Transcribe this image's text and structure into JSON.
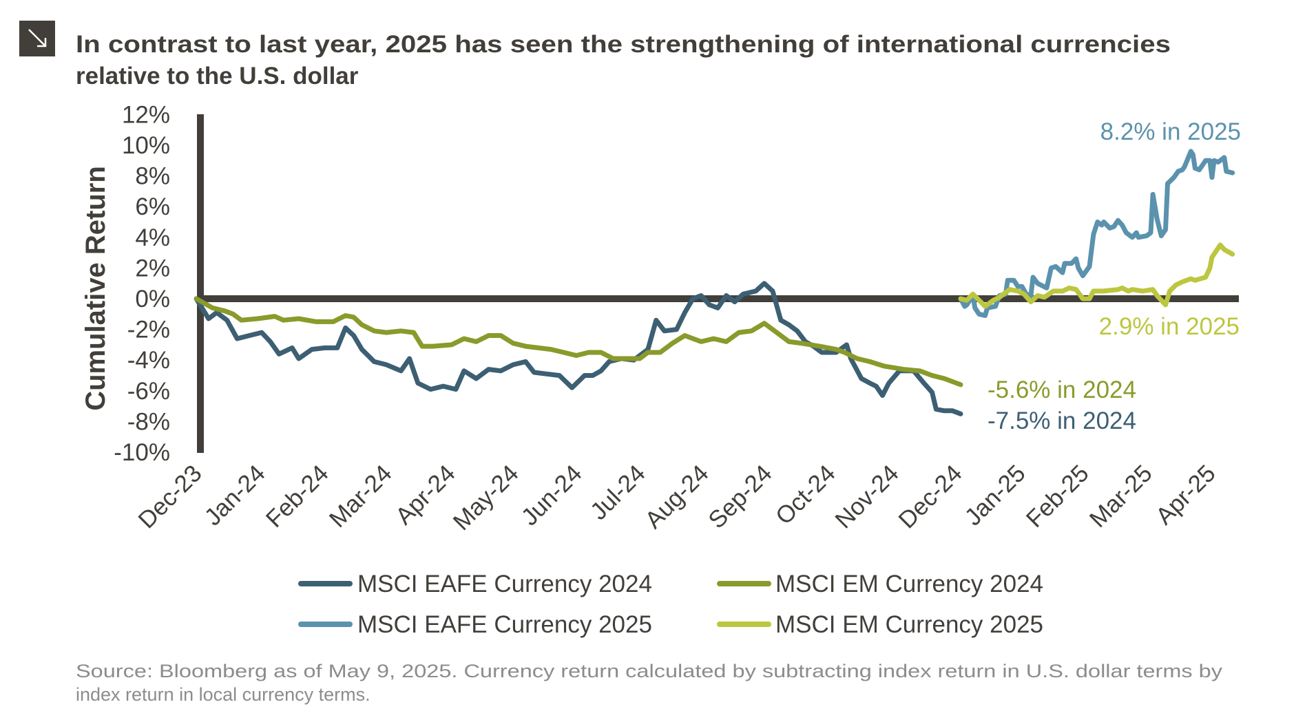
{
  "header": {
    "icon": "arrow-down-right-icon",
    "title_line1": "In contrast to last year, 2025 has seen the strengthening of international currencies",
    "title_line2": "relative to the U.S. dollar"
  },
  "source": {
    "line1": "Source: Bloomberg as of May 9, 2025. Currency return calculated by subtracting index return in U.S. dollar terms by",
    "line2": "index return in local currency terms."
  },
  "chart_data": {
    "type": "line",
    "ylabel": "Cumulative Return",
    "xlabel": "",
    "ylim": [
      -10,
      12
    ],
    "yticks": [
      "12%",
      "10%",
      "8%",
      "6%",
      "4%",
      "2%",
      "0%",
      "-2%",
      "-4%",
      "-6%",
      "-8%",
      "-10%"
    ],
    "xticks": [
      "Dec-23",
      "Jan-24",
      "Feb-24",
      "Mar-24",
      "Apr-24",
      "May-24",
      "Jun-24",
      "Jul-24",
      "Aug-24",
      "Sep-24",
      "Oct-24",
      "Nov-24",
      "Dec-24",
      "Jan-25",
      "Feb-25",
      "Mar-25",
      "Apr-25"
    ],
    "grid": false,
    "legend_position": "bottom",
    "annotations": [
      {
        "text": "8.2% in 2025",
        "series": "MSCI EAFE Currency 2025",
        "color": "#5b92ad"
      },
      {
        "text": "2.9% in 2025",
        "series": "MSCI EM Currency 2025",
        "color": "#bcc63f"
      },
      {
        "text": "-5.6% in 2024",
        "series": "MSCI EM Currency 2024",
        "color": "#8a9a2b"
      },
      {
        "text": "-7.5% in 2024",
        "series": "MSCI EAFE Currency 2024",
        "color": "#3d5f73"
      }
    ],
    "series": [
      {
        "name": "MSCI EAFE Currency 2024",
        "color": "#3d5f73",
        "x": [
          "2023-12-29",
          "2024-01-04",
          "2024-01-08",
          "2024-01-13",
          "2024-01-18",
          "2024-01-24",
          "2024-01-30",
          "2024-02-03",
          "2024-02-07",
          "2024-02-13",
          "2024-02-16",
          "2024-02-22",
          "2024-02-28",
          "2024-03-05",
          "2024-03-09",
          "2024-03-13",
          "2024-03-17",
          "2024-03-23",
          "2024-03-29",
          "2024-04-05",
          "2024-04-09",
          "2024-04-13",
          "2024-04-19",
          "2024-04-25",
          "2024-05-01",
          "2024-05-05",
          "2024-05-11",
          "2024-05-17",
          "2024-05-23",
          "2024-05-29",
          "2024-06-04",
          "2024-06-08",
          "2024-06-14",
          "2024-06-20",
          "2024-06-26",
          "2024-07-02",
          "2024-07-06",
          "2024-07-10",
          "2024-07-14",
          "2024-07-20",
          "2024-07-26",
          "2024-08-02",
          "2024-08-06",
          "2024-08-10",
          "2024-08-16",
          "2024-08-20",
          "2024-08-24",
          "2024-08-28",
          "2024-09-01",
          "2024-09-05",
          "2024-09-09",
          "2024-09-13",
          "2024-09-17",
          "2024-09-23",
          "2024-09-27",
          "2024-10-01",
          "2024-10-05",
          "2024-10-09",
          "2024-10-13",
          "2024-10-17",
          "2024-10-21",
          "2024-10-25",
          "2024-11-01",
          "2024-11-06",
          "2024-11-08",
          "2024-11-13",
          "2024-11-17",
          "2024-11-20",
          "2024-11-23",
          "2024-11-26",
          "2024-12-01",
          "2024-12-04",
          "2024-12-08",
          "2024-12-13",
          "2024-12-17",
          "2024-12-19",
          "2024-12-23",
          "2024-12-27",
          "2024-12-31"
        ],
        "y": [
          0,
          -1.3,
          -0.9,
          -1.4,
          -2.6,
          -2.4,
          -2.2,
          -2.8,
          -3.6,
          -3.2,
          -3.9,
          -3.3,
          -3.2,
          -3.2,
          -1.9,
          -2.4,
          -3.3,
          -4.1,
          -4.3,
          -4.7,
          -3.9,
          -5.5,
          -5.9,
          -5.7,
          -5.9,
          -4.7,
          -5.2,
          -4.6,
          -4.7,
          -4.3,
          -4.1,
          -4.8,
          -4.9,
          -5.0,
          -5.8,
          -5.0,
          -5.0,
          -4.7,
          -4.1,
          -3.9,
          -4.0,
          -3.3,
          -1.4,
          -2.1,
          -2.0,
          -0.9,
          0.0,
          0.2,
          -0.4,
          -0.6,
          0.2,
          -0.2,
          0.3,
          0.5,
          1.0,
          0.5,
          -1.4,
          -1.7,
          -2.1,
          -2.8,
          -3.1,
          -3.5,
          -3.5,
          -3.0,
          -3.9,
          -5.2,
          -5.5,
          -5.7,
          -6.3,
          -5.5,
          -4.7,
          -4.7,
          -4.7,
          -5.5,
          -6.1,
          -7.2,
          -7.3,
          -7.3,
          -7.5
        ]
      },
      {
        "name": "MSCI EM Currency 2024",
        "color": "#8a9a2b",
        "x": [
          "2023-12-29",
          "2024-01-06",
          "2024-01-12",
          "2024-01-16",
          "2024-01-20",
          "2024-01-28",
          "2024-02-05",
          "2024-02-09",
          "2024-02-16",
          "2024-02-24",
          "2024-03-03",
          "2024-03-09",
          "2024-03-13",
          "2024-03-17",
          "2024-03-23",
          "2024-03-29",
          "2024-04-05",
          "2024-04-11",
          "2024-04-15",
          "2024-04-20",
          "2024-04-29",
          "2024-05-05",
          "2024-05-11",
          "2024-05-17",
          "2024-05-23",
          "2024-05-29",
          "2024-06-04",
          "2024-06-10",
          "2024-06-16",
          "2024-06-22",
          "2024-06-28",
          "2024-07-04",
          "2024-07-10",
          "2024-07-16",
          "2024-07-22",
          "2024-07-29",
          "2024-08-02",
          "2024-08-08",
          "2024-08-14",
          "2024-08-20",
          "2024-08-28",
          "2024-09-03",
          "2024-09-09",
          "2024-09-15",
          "2024-09-21",
          "2024-09-27",
          "2024-10-03",
          "2024-10-09",
          "2024-10-15",
          "2024-10-24",
          "2024-11-01",
          "2024-11-05",
          "2024-11-11",
          "2024-11-17",
          "2024-11-24",
          "2024-12-03",
          "2024-12-11",
          "2024-12-17",
          "2024-12-23",
          "2024-12-31"
        ],
        "y": [
          0,
          -0.6,
          -0.8,
          -1.0,
          -1.4,
          -1.3,
          -1.15,
          -1.4,
          -1.3,
          -1.5,
          -1.5,
          -1.1,
          -1.2,
          -1.7,
          -2.1,
          -2.2,
          -2.1,
          -2.2,
          -3.1,
          -3.1,
          -3.0,
          -2.6,
          -2.8,
          -2.4,
          -2.4,
          -2.9,
          -3.1,
          -3.2,
          -3.3,
          -3.5,
          -3.7,
          -3.5,
          -3.5,
          -3.9,
          -3.9,
          -3.9,
          -3.5,
          -3.5,
          -2.9,
          -2.4,
          -2.8,
          -2.6,
          -2.8,
          -2.2,
          -2.1,
          -1.6,
          -2.2,
          -2.8,
          -2.9,
          -3.1,
          -3.3,
          -3.5,
          -3.9,
          -4.1,
          -4.4,
          -4.6,
          -4.7,
          -5.0,
          -5.2,
          -5.6
        ]
      },
      {
        "name": "MSCI EAFE Currency 2025",
        "color": "#5b92ad",
        "x": [
          "2024-12-31",
          "2025-01-02",
          "2025-01-03",
          "2025-01-06",
          "2025-01-07",
          "2025-01-09",
          "2025-01-12",
          "2025-01-13",
          "2025-01-17",
          "2025-01-19",
          "2025-01-22",
          "2025-01-23",
          "2025-01-26",
          "2025-01-28",
          "2025-01-30",
          "2025-02-01",
          "2025-02-03",
          "2025-02-04",
          "2025-02-06",
          "2025-02-10",
          "2025-02-12",
          "2025-02-14",
          "2025-02-17",
          "2025-02-18",
          "2025-02-21",
          "2025-02-23",
          "2025-02-24",
          "2025-02-26",
          "2025-03-01",
          "2025-03-03",
          "2025-03-05",
          "2025-03-07",
          "2025-03-08",
          "2025-03-11",
          "2025-03-13",
          "2025-03-15",
          "2025-03-17",
          "2025-03-19",
          "2025-03-22",
          "2025-03-24",
          "2025-03-25",
          "2025-03-29",
          "2025-03-31",
          "2025-04-01",
          "2025-04-03",
          "2025-04-05",
          "2025-04-07",
          "2025-04-08",
          "2025-04-11",
          "2025-04-13",
          "2025-04-15",
          "2025-04-16",
          "2025-04-19",
          "2025-04-20",
          "2025-04-21",
          "2025-04-23",
          "2025-04-26",
          "2025-04-28",
          "2025-04-29",
          "2025-04-30",
          "2025-05-02",
          "2025-05-05",
          "2025-05-06",
          "2025-05-09"
        ],
        "y": [
          0,
          -0.5,
          -0.4,
          0.2,
          -0.6,
          -1.0,
          -1.1,
          -0.6,
          -0.5,
          0.2,
          0.3,
          1.2,
          1.2,
          0.8,
          0.8,
          0.3,
          0.2,
          1.4,
          1.0,
          0.7,
          2.0,
          2.1,
          1.7,
          2.3,
          2.3,
          2.6,
          2.0,
          1.5,
          2.1,
          4.2,
          5.0,
          4.8,
          5.0,
          4.6,
          4.7,
          5.1,
          4.8,
          4.3,
          4.0,
          4.3,
          4.0,
          4.1,
          4.3,
          6.8,
          5.2,
          4.1,
          4.5,
          7.5,
          7.9,
          8.3,
          8.4,
          8.6,
          9.6,
          9.4,
          8.5,
          8.4,
          9.0,
          9.0,
          7.9,
          9.0,
          8.9,
          9.2,
          8.3,
          8.2
        ]
      },
      {
        "name": "MSCI EM Currency 2025",
        "color": "#bcc63f",
        "x": [
          "2024-12-31",
          "2025-01-03",
          "2025-01-06",
          "2025-01-09",
          "2025-01-12",
          "2025-01-16",
          "2025-01-19",
          "2025-01-24",
          "2025-01-28",
          "2025-01-31",
          "2025-02-03",
          "2025-02-06",
          "2025-02-09",
          "2025-02-13",
          "2025-02-17",
          "2025-02-20",
          "2025-02-23",
          "2025-02-26",
          "2025-03-01",
          "2025-03-03",
          "2025-03-08",
          "2025-03-15",
          "2025-03-17",
          "2025-03-20",
          "2025-03-22",
          "2025-03-27",
          "2025-04-01",
          "2025-04-03",
          "2025-04-07",
          "2025-04-09",
          "2025-04-12",
          "2025-04-15",
          "2025-04-19",
          "2025-04-21",
          "2025-04-26",
          "2025-04-28",
          "2025-04-29",
          "2025-05-03",
          "2025-05-05",
          "2025-05-09"
        ],
        "y": [
          0,
          -0.1,
          0.3,
          -0.1,
          -0.5,
          -0.1,
          0.1,
          0.6,
          0.5,
          0.3,
          -0.2,
          0.2,
          0.1,
          0.5,
          0.5,
          0.7,
          0.6,
          0.0,
          0.0,
          0.5,
          0.5,
          0.6,
          0.7,
          0.5,
          0.6,
          0.5,
          0.6,
          0.2,
          -0.4,
          0.5,
          0.9,
          1.1,
          1.3,
          1.2,
          1.4,
          2.0,
          2.7,
          3.5,
          3.2,
          2.9
        ]
      }
    ]
  }
}
